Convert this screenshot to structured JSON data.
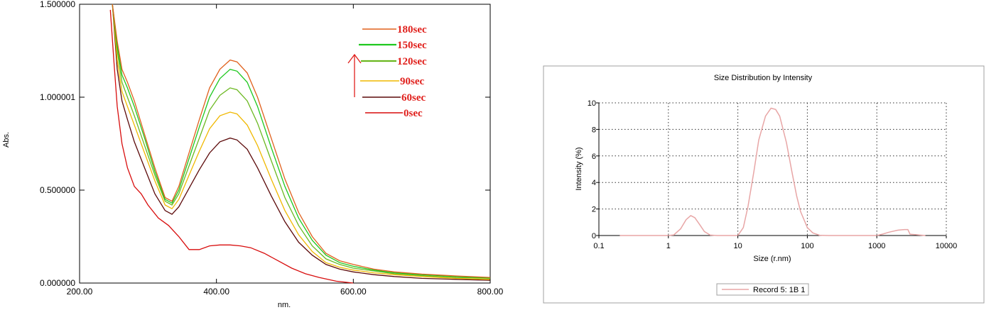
{
  "chart_data": [
    {
      "type": "line",
      "title": "",
      "xlabel": "nm.",
      "ylabel": "Abs.",
      "xlim": [
        200,
        800
      ],
      "ylim": [
        0,
        1.5
      ],
      "x_ticks": [
        "200.00",
        "400.00",
        "600.00",
        "800.00"
      ],
      "y_ticks": [
        "0.000000",
        "0.500000",
        "1.000001",
        "1.500000"
      ],
      "grid": false,
      "legend_position": "top-right",
      "legend_order": [
        "180sec",
        "150sec",
        "120sec",
        "90sec",
        "60sec",
        "0sec"
      ],
      "series": [
        {
          "name": "0sec",
          "color": "#d80d0d",
          "x": [
            245,
            250,
            255,
            262,
            270,
            280,
            290,
            300,
            315,
            330,
            345,
            360,
            375,
            390,
            405,
            420,
            435,
            450,
            470,
            490,
            510,
            530,
            550,
            575,
            600
          ],
          "y": [
            1.47,
            1.2,
            0.95,
            0.75,
            0.62,
            0.52,
            0.48,
            0.42,
            0.35,
            0.31,
            0.25,
            0.18,
            0.18,
            0.2,
            0.205,
            0.205,
            0.2,
            0.19,
            0.16,
            0.12,
            0.08,
            0.05,
            0.03,
            0.01,
            0.0
          ]
        },
        {
          "name": "60sec",
          "color": "#5c0a0a",
          "x": [
            248,
            255,
            262,
            270,
            280,
            295,
            310,
            325,
            335,
            345,
            360,
            375,
            390,
            405,
            420,
            430,
            445,
            460,
            480,
            500,
            520,
            540,
            560,
            580,
            600,
            630,
            660,
            700,
            750,
            800
          ],
          "y": [
            1.5,
            1.15,
            0.98,
            0.88,
            0.76,
            0.62,
            0.48,
            0.39,
            0.37,
            0.41,
            0.51,
            0.61,
            0.7,
            0.76,
            0.78,
            0.77,
            0.72,
            0.62,
            0.47,
            0.33,
            0.22,
            0.15,
            0.1,
            0.075,
            0.06,
            0.045,
            0.035,
            0.025,
            0.02,
            0.015
          ]
        },
        {
          "name": "90sec",
          "color": "#f0b800",
          "x": [
            248,
            255,
            262,
            270,
            280,
            295,
            310,
            325,
            335,
            345,
            360,
            375,
            390,
            405,
            420,
            430,
            445,
            460,
            480,
            500,
            520,
            540,
            560,
            580,
            600,
            630,
            660,
            700,
            750,
            800
          ],
          "y": [
            1.5,
            1.2,
            1.03,
            0.95,
            0.85,
            0.7,
            0.55,
            0.42,
            0.4,
            0.45,
            0.58,
            0.71,
            0.83,
            0.9,
            0.92,
            0.91,
            0.85,
            0.74,
            0.56,
            0.39,
            0.26,
            0.17,
            0.11,
            0.085,
            0.07,
            0.055,
            0.045,
            0.035,
            0.025,
            0.02
          ]
        },
        {
          "name": "120sec",
          "color": "#6bb820",
          "x": [
            248,
            255,
            262,
            270,
            280,
            295,
            310,
            325,
            335,
            345,
            360,
            375,
            390,
            405,
            420,
            430,
            445,
            460,
            480,
            500,
            520,
            540,
            560,
            580,
            600,
            630,
            660,
            700,
            750,
            800
          ],
          "y": [
            1.5,
            1.25,
            1.08,
            1.0,
            0.9,
            0.74,
            0.58,
            0.44,
            0.42,
            0.48,
            0.63,
            0.78,
            0.93,
            1.01,
            1.05,
            1.04,
            0.98,
            0.86,
            0.66,
            0.46,
            0.31,
            0.2,
            0.13,
            0.1,
            0.08,
            0.065,
            0.05,
            0.04,
            0.03,
            0.025
          ]
        },
        {
          "name": "150sec",
          "color": "#1ec81e",
          "x": [
            248,
            255,
            262,
            270,
            280,
            295,
            310,
            325,
            335,
            345,
            360,
            375,
            390,
            405,
            420,
            430,
            445,
            460,
            480,
            500,
            520,
            540,
            560,
            580,
            600,
            630,
            660,
            700,
            750,
            800
          ],
          "y": [
            1.5,
            1.28,
            1.12,
            1.05,
            0.95,
            0.78,
            0.6,
            0.45,
            0.43,
            0.5,
            0.67,
            0.84,
            1.0,
            1.1,
            1.15,
            1.14,
            1.08,
            0.95,
            0.73,
            0.52,
            0.35,
            0.23,
            0.15,
            0.11,
            0.09,
            0.07,
            0.055,
            0.045,
            0.035,
            0.028
          ]
        },
        {
          "name": "180sec",
          "color": "#e0601c",
          "x": [
            248,
            255,
            262,
            270,
            280,
            295,
            310,
            325,
            335,
            345,
            360,
            375,
            390,
            405,
            420,
            430,
            445,
            460,
            480,
            500,
            520,
            540,
            560,
            580,
            600,
            630,
            660,
            700,
            750,
            800
          ],
          "y": [
            1.5,
            1.3,
            1.15,
            1.08,
            0.98,
            0.8,
            0.62,
            0.46,
            0.44,
            0.52,
            0.7,
            0.88,
            1.05,
            1.15,
            1.2,
            1.19,
            1.13,
            1.0,
            0.78,
            0.56,
            0.38,
            0.25,
            0.16,
            0.12,
            0.1,
            0.075,
            0.06,
            0.048,
            0.038,
            0.03
          ]
        }
      ]
    },
    {
      "type": "line",
      "title": "Size Distribution by Intensity",
      "xlabel": "Size (r.nm)",
      "ylabel": "Intensity (%)",
      "xscale": "log",
      "xlim": [
        0.1,
        10000
      ],
      "ylim": [
        0,
        10
      ],
      "x_ticks": [
        "0.1",
        "1",
        "10",
        "100",
        "1000",
        "10000"
      ],
      "y_ticks": [
        "0",
        "2",
        "4",
        "6",
        "8",
        "10"
      ],
      "grid": true,
      "legend_position": "bottom-center",
      "series": [
        {
          "name": "Record 5: 1B 1",
          "color": "#e8a6a6",
          "x": [
            0.2,
            1.0,
            1.2,
            1.5,
            1.8,
            2.1,
            2.4,
            2.8,
            3.3,
            4.0,
            5,
            10,
            12,
            14,
            17,
            20,
            25,
            30,
            35,
            40,
            50,
            60,
            70,
            80,
            100,
            120,
            150,
            200,
            1000,
            1200,
            1500,
            2000,
            2500,
            2800,
            3000,
            5000
          ],
          "y": [
            0,
            0,
            0.05,
            0.5,
            1.2,
            1.5,
            1.35,
            0.85,
            0.3,
            0.03,
            0,
            0,
            0.6,
            2.2,
            4.8,
            7.2,
            9.0,
            9.6,
            9.5,
            9.0,
            7.0,
            4.8,
            3.0,
            1.8,
            0.6,
            0.2,
            0.02,
            0,
            0,
            0.1,
            0.25,
            0.4,
            0.45,
            0.45,
            0.1,
            0
          ]
        }
      ]
    }
  ]
}
